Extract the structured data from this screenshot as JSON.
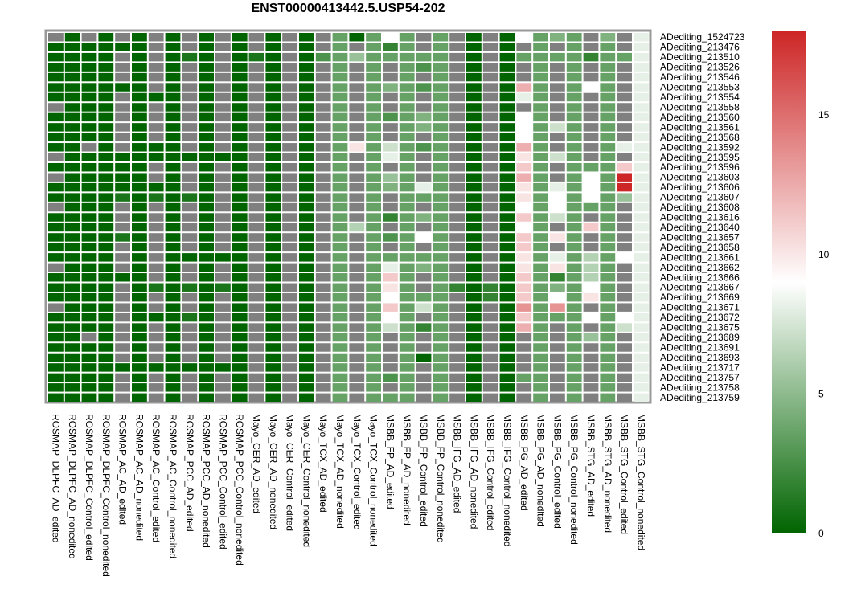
{
  "chart_data": {
    "type": "heatmap",
    "title": "ENST00000413442.5.USP54-202",
    "colorbar": {
      "min": 0,
      "max": 18,
      "ticks": [
        0,
        5,
        10,
        15
      ],
      "colors": [
        "#006400",
        "#ffffff",
        "#cd2626"
      ],
      "na_color": "#808080"
    },
    "columns": [
      "ROSMAP_DLPFC_AD_edited",
      "ROSMAP_DLPFC_AD_nonedited",
      "ROSMAP_DLPFC_Control_edited",
      "ROSMAP_DLPFC_Control_nonedited",
      "ROSMAP_AC_AD_edited",
      "ROSMAP_AC_AD_nonedited",
      "ROSMAP_AC_Control_edited",
      "ROSMAP_AC_Control_nonedited",
      "ROSMAP_PCC_AD_edited",
      "ROSMAP_PCC_AD_nonedited",
      "ROSMAP_PCC_Control_edited",
      "ROSMAP_PCC_Control_nonedited",
      "Mayo_CER_AD_edited",
      "Mayo_CER_AD_nonedited",
      "Mayo_CER_Control_edited",
      "Mayo_CER_Control_nonedited",
      "Mayo_TCX_AD_edited",
      "Mayo_TCX_AD_nonedited",
      "Mayo_TCX_Control_edited",
      "Mayo_TCX_Control_nonedited",
      "MSBB_FP_AD_edited",
      "MSBB_FP_AD_nonedited",
      "MSBB_FP_Control_edited",
      "MSBB_FP_Control_nonedited",
      "MSBB_IFG_AD_edited",
      "MSBB_IFG_AD_nonedited",
      "MSBB_IFG_Control_edited",
      "MSBB_IFG_Control_nonedited",
      "MSBB_PG_AD_edited",
      "MSBB_PG_AD_nonedited",
      "MSBB_PG_Control_edited",
      "MSBB_PG_Control_nonedited",
      "MSBB_STG_AD_edited",
      "MSBB_STG_AD_nonedited",
      "MSBB_STG_Control_edited",
      "MSBB_STG_Control_nonedited"
    ],
    "rows": [
      "ADediting_1524723",
      "ADediting_213476",
      "ADediting_213510",
      "ADediting_213526",
      "ADediting_213546",
      "ADediting_213553",
      "ADediting_213554",
      "ADediting_213558",
      "ADediting_213560",
      "ADediting_213561",
      "ADediting_213568",
      "ADediting_213592",
      "ADediting_213595",
      "ADediting_213596",
      "ADediting_213603",
      "ADediting_213606",
      "ADediting_213607",
      "ADediting_213608",
      "ADediting_213616",
      "ADediting_213640",
      "ADediting_213657",
      "ADediting_213658",
      "ADediting_213661",
      "ADediting_213662",
      "ADediting_213666",
      "ADediting_213667",
      "ADediting_213669",
      "ADediting_213671",
      "ADediting_213672",
      "ADediting_213675",
      "ADediting_213689",
      "ADediting_213691",
      "ADediting_213693",
      "ADediting_213717",
      "ADediting_213757",
      "ADediting_213758",
      "ADediting_213759"
    ],
    "values": [
      [
        null,
        0,
        null,
        0,
        null,
        0,
        null,
        0,
        null,
        0,
        null,
        0,
        null,
        0,
        null,
        0,
        null,
        4,
        0,
        4,
        10,
        4,
        null,
        4,
        null,
        0,
        null,
        0,
        10,
        4,
        5,
        4,
        null,
        5,
        null,
        9
      ],
      [
        0,
        0,
        0,
        0,
        0,
        0,
        null,
        0,
        null,
        0,
        null,
        0,
        null,
        0,
        null,
        0,
        null,
        4,
        null,
        4,
        2,
        4,
        null,
        4,
        null,
        0,
        null,
        0,
        null,
        4,
        null,
        4,
        null,
        4,
        null,
        9
      ],
      [
        0,
        0,
        0,
        0,
        null,
        0,
        null,
        0,
        1,
        0,
        null,
        0,
        1,
        0,
        null,
        0,
        3,
        4,
        6,
        4,
        4,
        4,
        4,
        4,
        null,
        0,
        null,
        0,
        4,
        4,
        4,
        4,
        2,
        4,
        4,
        9
      ],
      [
        0,
        0,
        0,
        0,
        null,
        0,
        null,
        0,
        null,
        0,
        null,
        0,
        null,
        0,
        null,
        0,
        null,
        4,
        null,
        4,
        null,
        4,
        3,
        4,
        null,
        0,
        null,
        0,
        null,
        4,
        null,
        4,
        null,
        4,
        null,
        9
      ],
      [
        0,
        0,
        0,
        0,
        null,
        0,
        null,
        0,
        null,
        0,
        null,
        0,
        null,
        0,
        null,
        0,
        null,
        4,
        null,
        4,
        null,
        4,
        null,
        4,
        null,
        0,
        null,
        0,
        null,
        4,
        null,
        4,
        null,
        4,
        null,
        9
      ],
      [
        0,
        0,
        0,
        0,
        0,
        0,
        null,
        0,
        null,
        0,
        null,
        0,
        null,
        0,
        null,
        0,
        null,
        4,
        null,
        4,
        5,
        4,
        3,
        4,
        null,
        0,
        null,
        0,
        13,
        4,
        null,
        4,
        10,
        4,
        null,
        9
      ],
      [
        0,
        0,
        0,
        0,
        null,
        0,
        0,
        0,
        null,
        0,
        null,
        0,
        null,
        0,
        null,
        0,
        null,
        4,
        null,
        4,
        null,
        4,
        null,
        4,
        null,
        0,
        null,
        0,
        9,
        4,
        null,
        4,
        null,
        4,
        null,
        9
      ],
      [
        null,
        0,
        0,
        0,
        null,
        0,
        null,
        0,
        null,
        0,
        null,
        0,
        null,
        0,
        null,
        0,
        null,
        4,
        null,
        4,
        null,
        4,
        null,
        4,
        null,
        0,
        null,
        0,
        null,
        4,
        null,
        4,
        null,
        4,
        null,
        9
      ],
      [
        0,
        0,
        0,
        0,
        null,
        0,
        null,
        0,
        null,
        0,
        null,
        0,
        null,
        0,
        null,
        0,
        null,
        4,
        null,
        4,
        3,
        4,
        5,
        4,
        null,
        0,
        null,
        0,
        10,
        4,
        null,
        4,
        null,
        4,
        null,
        9
      ],
      [
        0,
        0,
        0,
        0,
        null,
        0,
        null,
        0,
        null,
        0,
        null,
        0,
        null,
        0,
        null,
        0,
        null,
        4,
        null,
        4,
        null,
        4,
        5,
        4,
        null,
        0,
        null,
        0,
        10,
        4,
        8,
        4,
        null,
        4,
        null,
        9
      ],
      [
        0,
        0,
        0,
        0,
        null,
        0,
        null,
        0,
        null,
        0,
        null,
        0,
        null,
        0,
        null,
        0,
        null,
        4,
        null,
        4,
        null,
        4,
        null,
        4,
        null,
        0,
        null,
        0,
        10,
        4,
        null,
        4,
        null,
        4,
        null,
        9
      ],
      [
        0,
        0,
        null,
        0,
        null,
        0,
        0,
        0,
        null,
        0,
        null,
        0,
        null,
        0,
        null,
        0,
        null,
        4,
        11,
        4,
        8,
        4,
        3,
        4,
        null,
        0,
        null,
        0,
        13,
        4,
        null,
        4,
        null,
        4,
        9,
        9
      ],
      [
        null,
        0,
        0,
        0,
        0,
        0,
        0,
        0,
        0,
        0,
        0,
        0,
        null,
        0,
        null,
        0,
        null,
        4,
        null,
        4,
        9,
        4,
        null,
        4,
        null,
        0,
        null,
        0,
        11,
        4,
        8,
        4,
        null,
        4,
        null,
        9
      ],
      [
        0,
        0,
        0,
        0,
        0,
        0,
        null,
        0,
        null,
        0,
        null,
        0,
        null,
        0,
        null,
        0,
        null,
        4,
        null,
        4,
        null,
        4,
        null,
        4,
        null,
        0,
        null,
        0,
        12,
        4,
        null,
        4,
        4,
        4,
        12,
        9
      ],
      [
        null,
        0,
        0,
        0,
        0,
        0,
        null,
        0,
        null,
        0,
        null,
        0,
        null,
        0,
        null,
        0,
        null,
        4,
        null,
        4,
        6,
        4,
        null,
        4,
        null,
        0,
        null,
        0,
        13,
        4,
        null,
        4,
        10,
        4,
        18,
        9
      ],
      [
        0,
        0,
        0,
        0,
        0,
        0,
        0,
        0,
        null,
        0,
        null,
        0,
        null,
        0,
        null,
        0,
        null,
        4,
        null,
        4,
        5,
        4,
        9,
        4,
        null,
        0,
        null,
        0,
        11,
        4,
        9,
        4,
        10,
        4,
        18,
        9
      ],
      [
        0,
        0,
        0,
        0,
        1,
        0,
        1,
        0,
        1,
        0,
        null,
        0,
        null,
        0,
        null,
        0,
        null,
        4,
        null,
        4,
        null,
        4,
        4,
        4,
        null,
        0,
        null,
        0,
        11,
        4,
        10,
        4,
        10,
        4,
        6,
        9
      ],
      [
        null,
        0,
        0,
        0,
        null,
        0,
        null,
        0,
        null,
        0,
        null,
        0,
        null,
        0,
        null,
        0,
        null,
        4,
        null,
        4,
        null,
        4,
        null,
        4,
        null,
        0,
        null,
        0,
        10,
        4,
        10,
        4,
        4,
        4,
        null,
        9
      ],
      [
        0,
        0,
        0,
        0,
        null,
        0,
        null,
        0,
        null,
        0,
        null,
        0,
        null,
        0,
        null,
        0,
        null,
        4,
        null,
        4,
        2,
        4,
        5,
        4,
        null,
        0,
        null,
        0,
        12,
        4,
        8,
        4,
        null,
        4,
        null,
        9
      ],
      [
        0,
        0,
        0,
        0,
        null,
        0,
        null,
        0,
        null,
        0,
        null,
        0,
        null,
        0,
        null,
        0,
        null,
        4,
        7,
        4,
        null,
        4,
        null,
        4,
        null,
        0,
        null,
        0,
        10,
        4,
        null,
        4,
        12,
        4,
        null,
        9
      ],
      [
        0,
        0,
        0,
        0,
        1,
        0,
        null,
        0,
        null,
        0,
        null,
        0,
        null,
        0,
        null,
        0,
        null,
        4,
        null,
        4,
        3,
        4,
        10,
        4,
        null,
        0,
        null,
        0,
        12,
        4,
        11,
        4,
        null,
        4,
        null,
        9
      ],
      [
        0,
        0,
        0,
        0,
        null,
        0,
        null,
        0,
        null,
        0,
        null,
        0,
        null,
        0,
        null,
        0,
        null,
        4,
        null,
        4,
        null,
        4,
        null,
        4,
        null,
        0,
        null,
        0,
        12,
        4,
        null,
        4,
        null,
        4,
        null,
        9
      ],
      [
        0,
        0,
        0,
        0,
        null,
        0,
        null,
        0,
        0,
        0,
        0,
        0,
        null,
        0,
        null,
        0,
        null,
        4,
        null,
        4,
        4,
        4,
        4,
        4,
        null,
        0,
        null,
        0,
        11,
        4,
        9,
        4,
        7,
        4,
        10,
        9
      ],
      [
        null,
        0,
        0,
        0,
        null,
        0,
        null,
        0,
        null,
        0,
        null,
        0,
        null,
        0,
        null,
        0,
        null,
        4,
        null,
        4,
        9,
        4,
        5,
        4,
        null,
        0,
        null,
        0,
        11,
        4,
        11,
        4,
        7,
        4,
        null,
        9
      ],
      [
        0,
        0,
        0,
        0,
        0,
        0,
        null,
        0,
        null,
        0,
        null,
        0,
        null,
        0,
        null,
        0,
        null,
        4,
        null,
        4,
        12,
        4,
        null,
        4,
        null,
        0,
        null,
        0,
        12,
        4,
        2,
        4,
        7,
        4,
        null,
        9
      ],
      [
        0,
        0,
        0,
        0,
        null,
        0,
        1,
        0,
        1,
        0,
        1,
        0,
        null,
        0,
        null,
        0,
        null,
        4,
        null,
        4,
        11,
        4,
        null,
        4,
        2,
        0,
        2,
        0,
        12,
        4,
        5,
        4,
        10,
        4,
        null,
        9
      ],
      [
        0,
        0,
        0,
        0,
        null,
        0,
        null,
        0,
        null,
        0,
        null,
        0,
        null,
        0,
        null,
        0,
        null,
        4,
        null,
        4,
        10,
        4,
        4,
        4,
        null,
        0,
        2,
        0,
        12,
        4,
        10,
        4,
        11,
        4,
        null,
        9
      ],
      [
        null,
        0,
        0,
        0,
        null,
        0,
        null,
        0,
        null,
        0,
        null,
        0,
        null,
        0,
        null,
        0,
        null,
        4,
        null,
        4,
        12,
        4,
        8,
        4,
        null,
        0,
        null,
        0,
        14,
        4,
        14,
        4,
        null,
        4,
        null,
        9
      ],
      [
        0,
        0,
        0,
        0,
        null,
        0,
        0,
        0,
        1,
        0,
        null,
        0,
        null,
        0,
        null,
        0,
        null,
        4,
        null,
        4,
        10,
        4,
        null,
        4,
        null,
        0,
        null,
        0,
        12,
        4,
        4,
        4,
        10,
        4,
        10,
        9
      ],
      [
        0,
        0,
        0,
        0,
        null,
        0,
        null,
        0,
        null,
        0,
        null,
        0,
        null,
        0,
        null,
        0,
        null,
        4,
        null,
        4,
        8,
        4,
        2,
        4,
        null,
        0,
        null,
        0,
        13,
        4,
        null,
        4,
        null,
        4,
        8,
        9
      ],
      [
        0,
        0,
        null,
        0,
        null,
        0,
        null,
        0,
        null,
        0,
        null,
        0,
        null,
        0,
        null,
        0,
        null,
        4,
        null,
        4,
        null,
        4,
        null,
        4,
        null,
        0,
        null,
        0,
        null,
        4,
        null,
        4,
        6,
        4,
        null,
        9
      ],
      [
        0,
        0,
        0,
        0,
        null,
        0,
        null,
        0,
        null,
        0,
        null,
        0,
        null,
        0,
        null,
        0,
        null,
        4,
        null,
        4,
        null,
        4,
        null,
        4,
        null,
        0,
        null,
        0,
        null,
        4,
        null,
        4,
        null,
        4,
        null,
        9
      ],
      [
        0,
        0,
        0,
        0,
        null,
        0,
        null,
        0,
        null,
        0,
        null,
        0,
        null,
        0,
        null,
        0,
        null,
        4,
        null,
        4,
        null,
        4,
        0,
        4,
        null,
        0,
        null,
        0,
        null,
        4,
        null,
        4,
        null,
        4,
        null,
        9
      ],
      [
        0,
        0,
        0,
        0,
        0,
        0,
        0,
        0,
        0,
        0,
        0,
        0,
        null,
        0,
        null,
        0,
        null,
        4,
        null,
        4,
        null,
        4,
        null,
        4,
        null,
        0,
        null,
        0,
        null,
        4,
        null,
        4,
        null,
        4,
        null,
        9
      ],
      [
        0,
        0,
        0,
        0,
        null,
        0,
        null,
        0,
        null,
        0,
        null,
        0,
        null,
        0,
        null,
        0,
        null,
        4,
        null,
        4,
        3,
        4,
        null,
        4,
        null,
        0,
        null,
        0,
        4,
        4,
        null,
        4,
        null,
        4,
        null,
        9
      ],
      [
        0,
        0,
        0,
        0,
        null,
        0,
        null,
        0,
        null,
        0,
        null,
        0,
        null,
        0,
        null,
        0,
        null,
        4,
        null,
        4,
        null,
        4,
        null,
        4,
        null,
        0,
        null,
        0,
        null,
        4,
        null,
        4,
        null,
        4,
        null,
        9
      ],
      [
        0,
        0,
        0,
        0,
        null,
        0,
        null,
        0,
        null,
        0,
        null,
        0,
        null,
        0,
        null,
        0,
        null,
        4,
        null,
        4,
        4,
        4,
        null,
        4,
        null,
        0,
        null,
        0,
        null,
        4,
        null,
        4,
        null,
        4,
        null,
        9
      ]
    ]
  }
}
